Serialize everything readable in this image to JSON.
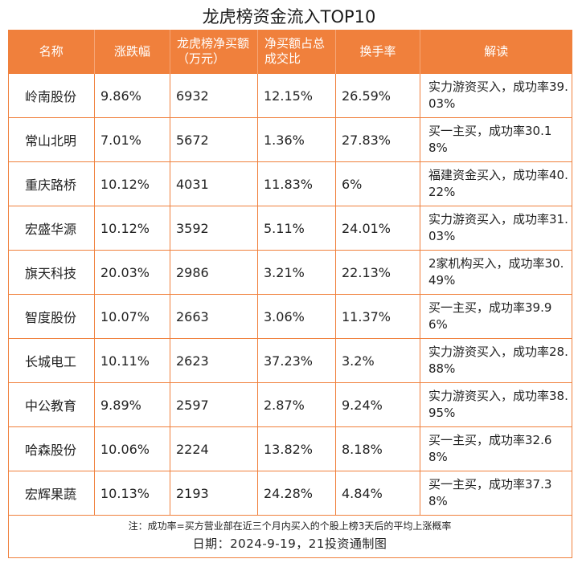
{
  "title": "龙虎榜资金流入TOP10",
  "headers": {
    "name": "名称",
    "change": "涨跌幅",
    "net_buy": "龙虎榜净买额（万元）",
    "ratio": "净买额占总成交比",
    "turnover": "换手率",
    "interpretation": "解读"
  },
  "rows": [
    {
      "name": "岭南股份",
      "change": "9.86%",
      "net_buy": "6932",
      "ratio": "12.15%",
      "turnover": "26.59%",
      "interpretation": "实力游资买入，成功率39.03%"
    },
    {
      "name": "常山北明",
      "change": "7.01%",
      "net_buy": "5672",
      "ratio": "1.36%",
      "turnover": "27.83%",
      "interpretation": "买一主买，成功率30.18%"
    },
    {
      "name": "重庆路桥",
      "change": "10.12%",
      "net_buy": "4031",
      "ratio": "11.83%",
      "turnover": "6%",
      "interpretation": "福建资金买入，成功率40.22%"
    },
    {
      "name": "宏盛华源",
      "change": "10.12%",
      "net_buy": "3592",
      "ratio": "5.11%",
      "turnover": "24.01%",
      "interpretation": "实力游资买入，成功率31.03%"
    },
    {
      "name": "旗天科技",
      "change": "20.03%",
      "net_buy": "2986",
      "ratio": "3.21%",
      "turnover": "22.13%",
      "interpretation": "2家机构买入，成功率30.49%"
    },
    {
      "name": "智度股份",
      "change": "10.07%",
      "net_buy": "2663",
      "ratio": "3.06%",
      "turnover": "11.37%",
      "interpretation": "买一主买，成功率39.96%"
    },
    {
      "name": "长城电工",
      "change": "10.11%",
      "net_buy": "2623",
      "ratio": "37.23%",
      "turnover": "3.2%",
      "interpretation": "实力游资买入，成功率28.88%"
    },
    {
      "name": "中公教育",
      "change": "9.89%",
      "net_buy": "2597",
      "ratio": "2.87%",
      "turnover": "9.24%",
      "interpretation": "实力游资买入，成功率38.95%"
    },
    {
      "name": "哈森股份",
      "change": "10.06%",
      "net_buy": "2224",
      "ratio": "13.82%",
      "turnover": "8.18%",
      "interpretation": "买一主买，成功率32.68%"
    },
    {
      "name": "宏辉果蔬",
      "change": "10.13%",
      "net_buy": "2193",
      "ratio": "24.28%",
      "turnover": "4.84%",
      "interpretation": "买一主买，成功率37.38%"
    }
  ],
  "note": "注：成功率=买方营业部在近三个月内买入的个股上榜3天后的平均上涨概率",
  "date_line": "日期：2024-9-19，21投资通制图",
  "colors": {
    "header_bg": "#f0803c",
    "border": "#f0803c",
    "header_text": "#ffffff"
  }
}
